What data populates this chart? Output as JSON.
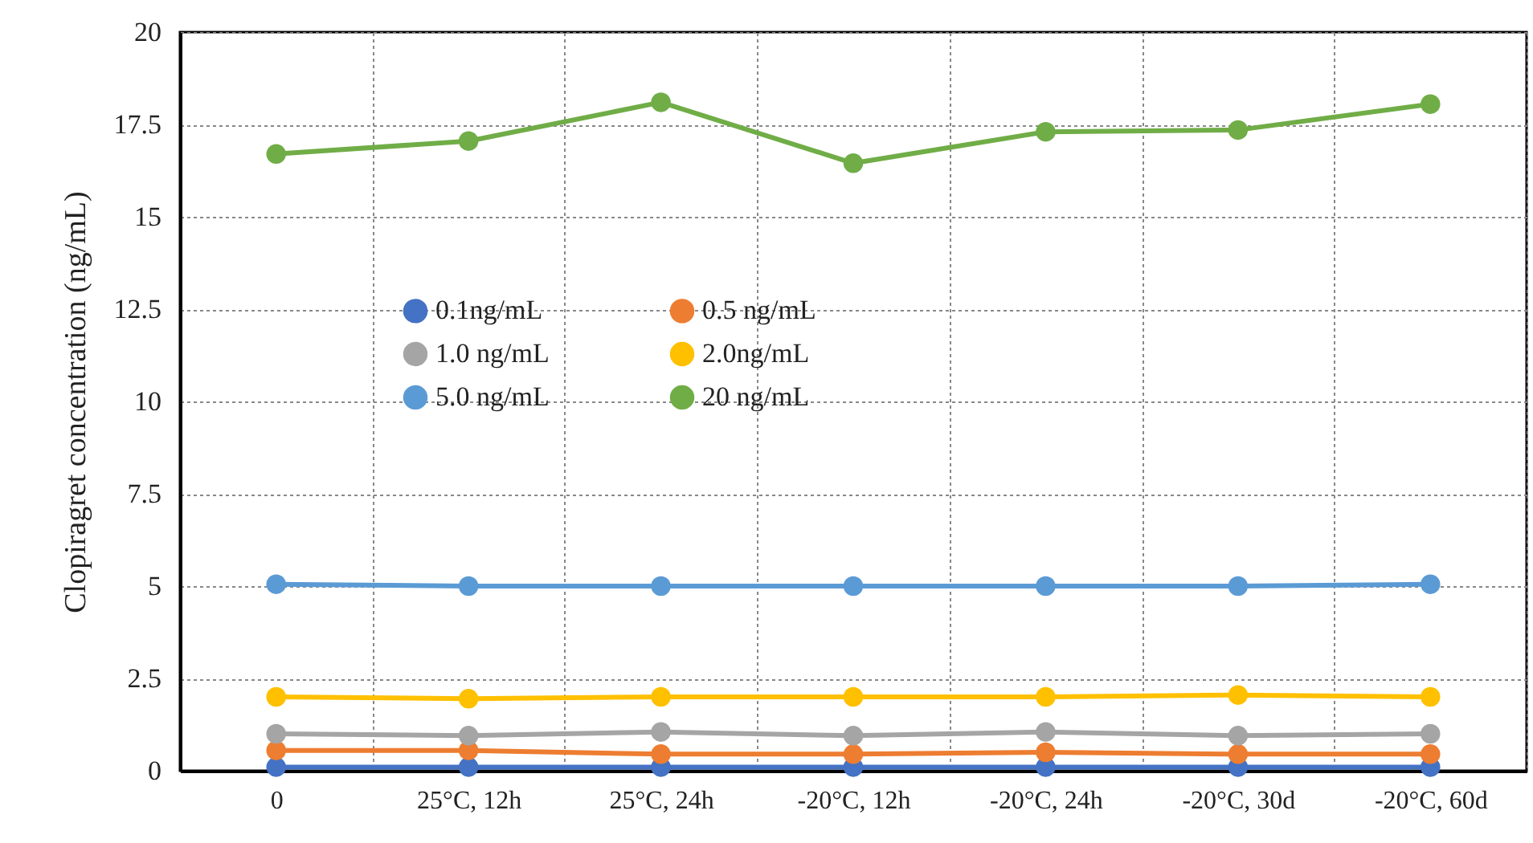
{
  "chart_data": {
    "type": "line",
    "ylabel": "Clopiragret concentration (ng/mL)",
    "categories": [
      "0",
      "25°C,  12h",
      "25°C,  24h",
      "-20°C, 12h",
      "-20°C, 24h",
      "-20°C, 30d",
      "-20°C, 60d"
    ],
    "series": [
      {
        "name": "0.1ng/mL",
        "color": "#4472c4",
        "values": [
          0.1,
          0.1,
          0.1,
          0.1,
          0.1,
          0.1,
          0.1
        ]
      },
      {
        "name": "0.5 ng/mL",
        "color": "#ed7d31",
        "values": [
          0.55,
          0.55,
          0.45,
          0.45,
          0.5,
          0.45,
          0.45
        ]
      },
      {
        "name": "1.0 ng/mL",
        "color": "#a5a5a5",
        "values": [
          1.0,
          0.95,
          1.05,
          0.95,
          1.05,
          0.95,
          1.0
        ]
      },
      {
        "name": "2.0ng/mL",
        "color": "#ffc000",
        "values": [
          2.0,
          1.95,
          2.0,
          2.0,
          2.0,
          2.05,
          2.0
        ]
      },
      {
        "name": "5.0 ng/mL",
        "color": "#5b9bd5",
        "values": [
          5.05,
          5.0,
          5.0,
          5.0,
          5.0,
          5.0,
          5.05
        ]
      },
      {
        "name": "20 ng/mL",
        "color": "#70ad47",
        "values": [
          16.7,
          17.05,
          18.1,
          16.45,
          17.3,
          17.35,
          18.05
        ]
      }
    ],
    "ylim": [
      0,
      20
    ],
    "yticks": [
      0,
      2.5,
      5,
      7.5,
      10,
      12.5,
      15,
      17.5,
      20
    ],
    "grid": true,
    "legend": "center",
    "marker": "circle",
    "line_style": "solid"
  }
}
